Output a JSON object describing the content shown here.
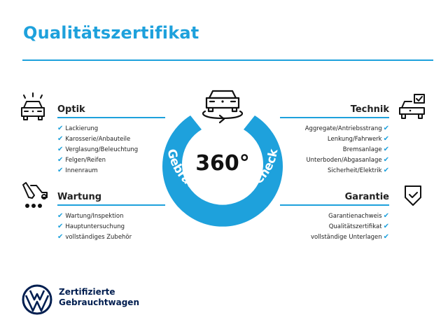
{
  "title": "Qualitätszertifikat",
  "accent_color": "#1ea1dc",
  "brand_color": "#001e50",
  "center": {
    "degrees": "360°",
    "ring_text": "Gebrauchtwagen-Check",
    "icon": "car-rotate-icon"
  },
  "sections": {
    "optik": {
      "title": "Optik",
      "icon": "car-lights-icon",
      "items": [
        "Lackierung",
        "Karosserie/Anbauteile",
        "Verglasung/Beleuchtung",
        "Felgen/Reifen",
        "Innenraum"
      ]
    },
    "wartung": {
      "title": "Wartung",
      "icon": "car-service-icon",
      "items": [
        "Wartung/Inspektion",
        "Hauptuntersuchung",
        "vollständiges Zubehör"
      ]
    },
    "technik": {
      "title": "Technik",
      "icon": "car-checkbox-icon",
      "items": [
        "Aggregate/Antriebsstrang",
        "Lenkung/Fahrwerk",
        "Bremsanlage",
        "Unterboden/Abgasanlage",
        "Sicherheit/Elektrik"
      ]
    },
    "garantie": {
      "title": "Garantie",
      "icon": "shield-check-icon",
      "items": [
        "Garantienachweis",
        "Qualitätszertifikat",
        "vollständige Unterlagen"
      ]
    }
  },
  "check_glyph": "✔",
  "footer": {
    "line1": "Zertifizierte",
    "line2": "Gebrauchtwagen",
    "logo": "vw-logo"
  }
}
